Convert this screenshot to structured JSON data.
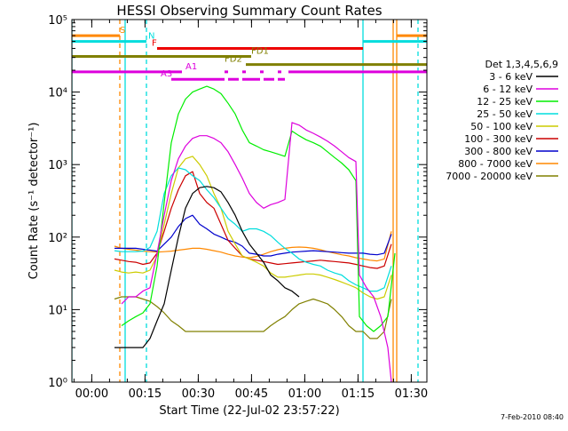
{
  "chart_data": {
    "type": "line",
    "title": "HESSI Observing Summary Count Rates",
    "xlabel": "Start Time (22-Jul-02 23:57:22)",
    "ylabel": "Count Rate (s⁻¹ detector⁻¹)",
    "footer": "7-Feb-2010 08:40",
    "x_unit": "minutes after start",
    "xlim": [
      -3,
      97
    ],
    "yscale": "log",
    "ylim": [
      1,
      100000
    ],
    "x_ticks": [
      {
        "value": 2.6,
        "label": "00:00"
      },
      {
        "value": 17.6,
        "label": "00:15"
      },
      {
        "value": 32.6,
        "label": "00:30"
      },
      {
        "value": 47.6,
        "label": "00:45"
      },
      {
        "value": 62.6,
        "label": "01:00"
      },
      {
        "value": 77.6,
        "label": "01:15"
      },
      {
        "value": 92.6,
        "label": "01:30"
      }
    ],
    "y_ticks": [
      {
        "value": 1,
        "label": "10⁰"
      },
      {
        "value": 10,
        "label": "10¹"
      },
      {
        "value": 100,
        "label": "10²"
      },
      {
        "value": 1000,
        "label": "10³"
      },
      {
        "value": 10000,
        "label": "10⁴"
      },
      {
        "value": 100000,
        "label": "10⁵"
      }
    ],
    "legend_title": "Det 1,3,4,5,6,9",
    "legend_placement": "right",
    "series": [
      {
        "name": "3 - 6 keV",
        "color": "#000000",
        "x": [
          9,
          11,
          13,
          15,
          17,
          19,
          21,
          23,
          25,
          27,
          29,
          31,
          33,
          35,
          37,
          39,
          41,
          43,
          45,
          47,
          49,
          51,
          53,
          55,
          57,
          59,
          61
        ],
        "y": [
          3,
          3,
          3,
          3,
          3,
          4,
          7,
          12,
          35,
          100,
          250,
          400,
          480,
          500,
          480,
          420,
          300,
          200,
          120,
          80,
          60,
          45,
          30,
          25,
          20,
          18,
          15
        ]
      },
      {
        "name": "6 - 12 keV",
        "color": "#dd00dd",
        "x": [
          11,
          13,
          15,
          17,
          19,
          21,
          23,
          25,
          27,
          29,
          31,
          33,
          35,
          37,
          39,
          41,
          43,
          45,
          47,
          49,
          51,
          53,
          55,
          57,
          59,
          61,
          63,
          65,
          67,
          69,
          71,
          73,
          75,
          77,
          78,
          80,
          82,
          84,
          86,
          87
        ],
        "y": [
          12,
          15,
          15,
          18,
          20,
          60,
          200,
          600,
          1200,
          1800,
          2300,
          2500,
          2500,
          2300,
          2000,
          1500,
          1000,
          650,
          400,
          300,
          250,
          280,
          300,
          330,
          3800,
          3500,
          3000,
          2700,
          2400,
          2100,
          1800,
          1500,
          1250,
          1100,
          30,
          20,
          15,
          8,
          3,
          1
        ]
      },
      {
        "name": "12 - 25 keV",
        "color": "#00ee00",
        "x": [
          11,
          13,
          15,
          17,
          19,
          21,
          23,
          25,
          27,
          29,
          31,
          33,
          35,
          37,
          39,
          41,
          43,
          45,
          47,
          49,
          51,
          53,
          55,
          57,
          59,
          61,
          63,
          65,
          67,
          69,
          71,
          73,
          75,
          77,
          78,
          80,
          82,
          84,
          86,
          88
        ],
        "y": [
          6,
          7,
          8,
          9,
          12,
          40,
          300,
          2000,
          5000,
          8000,
          10000,
          11000,
          12000,
          11000,
          9500,
          7000,
          5000,
          3000,
          2000,
          1800,
          1600,
          1500,
          1400,
          1300,
          2900,
          2500,
          2200,
          2000,
          1800,
          1500,
          1250,
          1050,
          850,
          600,
          8,
          6,
          5,
          6,
          8,
          60
        ]
      },
      {
        "name": "25 - 50 keV",
        "color": "#00dddd",
        "x": [
          9,
          11,
          13,
          15,
          17,
          19,
          21,
          23,
          25,
          27,
          29,
          31,
          33,
          35,
          37,
          39,
          41,
          43,
          45,
          47,
          49,
          51,
          53,
          55,
          57,
          59,
          61,
          63,
          65,
          67,
          69,
          71,
          73,
          75,
          77,
          79,
          81,
          83,
          85,
          87
        ],
        "y": [
          65,
          63,
          63,
          63,
          64,
          72,
          120,
          400,
          700,
          900,
          850,
          700,
          600,
          450,
          350,
          250,
          180,
          150,
          120,
          130,
          130,
          120,
          105,
          85,
          70,
          60,
          50,
          45,
          42,
          40,
          35,
          32,
          30,
          25,
          22,
          20,
          18,
          18,
          20,
          40
        ]
      },
      {
        "name": "50 - 100 keV",
        "color": "#cccc00",
        "x": [
          9,
          11,
          13,
          15,
          17,
          19,
          21,
          23,
          25,
          27,
          29,
          31,
          33,
          35,
          37,
          39,
          41,
          43,
          45,
          47,
          49,
          51,
          53,
          55,
          57,
          59,
          61,
          63,
          65,
          67,
          69,
          71,
          73,
          75,
          77,
          79,
          81,
          83,
          85,
          87
        ],
        "y": [
          35,
          33,
          32,
          33,
          32,
          35,
          55,
          150,
          400,
          900,
          1200,
          1300,
          1000,
          700,
          400,
          250,
          120,
          80,
          55,
          50,
          45,
          40,
          32,
          28,
          28,
          29,
          30,
          31,
          31,
          30,
          28,
          26,
          24,
          22,
          20,
          17,
          15,
          14,
          15,
          30
        ]
      },
      {
        "name": "100 - 300 keV",
        "color": "#cc0000",
        "x": [
          9,
          11,
          13,
          15,
          17,
          19,
          21,
          23,
          25,
          27,
          29,
          31,
          33,
          35,
          37,
          39,
          41,
          43,
          45,
          47,
          49,
          51,
          53,
          55,
          57,
          59,
          61,
          63,
          65,
          67,
          69,
          71,
          73,
          75,
          77,
          79,
          81,
          83,
          85,
          87
        ],
        "y": [
          50,
          48,
          46,
          45,
          42,
          44,
          60,
          120,
          250,
          450,
          700,
          800,
          400,
          300,
          250,
          150,
          90,
          70,
          55,
          50,
          48,
          46,
          44,
          42,
          43,
          44,
          45,
          46,
          47,
          48,
          47,
          46,
          45,
          44,
          42,
          40,
          38,
          37,
          40,
          80
        ]
      },
      {
        "name": "300 - 800 keV",
        "color": "#0000cc",
        "x": [
          9,
          11,
          13,
          15,
          17,
          19,
          21,
          23,
          25,
          27,
          29,
          31,
          33,
          35,
          37,
          39,
          41,
          43,
          45,
          47,
          49,
          51,
          53,
          55,
          57,
          59,
          61,
          63,
          65,
          67,
          69,
          71,
          73,
          75,
          77,
          79,
          81,
          83,
          85,
          87
        ],
        "y": [
          70,
          70,
          70,
          70,
          68,
          66,
          64,
          80,
          100,
          140,
          180,
          200,
          150,
          130,
          110,
          100,
          90,
          85,
          75,
          60,
          58,
          55,
          55,
          58,
          60,
          62,
          63,
          64,
          65,
          64,
          63,
          62,
          61,
          60,
          60,
          60,
          58,
          57,
          60,
          110
        ]
      },
      {
        "name": "800 - 7000 keV",
        "color": "#ff8800",
        "x": [
          9,
          11,
          13,
          15,
          17,
          19,
          21,
          23,
          25,
          27,
          29,
          31,
          33,
          35,
          37,
          39,
          41,
          43,
          45,
          47,
          49,
          51,
          53,
          55,
          57,
          59,
          61,
          63,
          65,
          67,
          69,
          71,
          73,
          75,
          77,
          79,
          81,
          83,
          85,
          87
        ],
        "y": [
          75,
          70,
          68,
          66,
          64,
          63,
          62,
          63,
          64,
          66,
          68,
          70,
          70,
          68,
          65,
          62,
          58,
          55,
          53,
          52,
          54,
          58,
          63,
          67,
          70,
          72,
          73,
          72,
          70,
          67,
          63,
          60,
          57,
          55,
          52,
          50,
          48,
          47,
          50,
          120
        ]
      },
      {
        "name": "7000 - 20000 keV",
        "color": "#808000",
        "x": [
          9,
          11,
          13,
          15,
          17,
          19,
          21,
          23,
          25,
          27,
          29,
          31,
          33,
          35,
          37,
          39,
          41,
          43,
          45,
          47,
          49,
          51,
          53,
          55,
          57,
          59,
          61,
          63,
          65,
          67,
          69,
          71,
          73,
          75,
          77,
          79,
          81,
          83,
          85,
          87
        ],
        "y": [
          14,
          15,
          15,
          15,
          14,
          13,
          11,
          9,
          7,
          6,
          5,
          5,
          5,
          5,
          5,
          5,
          5,
          5,
          5,
          5,
          5,
          5,
          6,
          7,
          8,
          10,
          12,
          13,
          14,
          13,
          12,
          10,
          8,
          6,
          5,
          5,
          4,
          4,
          5,
          14
        ]
      }
    ],
    "vertical_lines": [
      {
        "x": -3,
        "color": "#00dddd",
        "style": "solid"
      },
      {
        "x": 12,
        "color": "#00dddd",
        "style": "solid"
      },
      {
        "x": 18,
        "color": "#00dddd",
        "style": "dashed"
      },
      {
        "x": 10.5,
        "color": "#ff8800",
        "style": "dashed"
      },
      {
        "x": 79,
        "color": "#00dddd",
        "style": "solid"
      },
      {
        "x": 87.5,
        "color": "#ff8800",
        "style": "solid"
      },
      {
        "x": 88.5,
        "color": "#ff8800",
        "style": "solid"
      },
      {
        "x": 94.5,
        "color": "#00dddd",
        "style": "dashed"
      }
    ],
    "flag_bars": [
      {
        "label": "S",
        "color": "#ff8800",
        "y": 60000,
        "segments": [
          [
            -3,
            10.5
          ],
          [
            88.5,
            97
          ]
        ],
        "label_x": 10.5
      },
      {
        "label": "N",
        "color": "#00dddd",
        "y": 50000,
        "segments": [
          [
            -3,
            18
          ],
          [
            79,
            97
          ]
        ],
        "label_x": 18.5
      },
      {
        "label": "F",
        "color": "#ee0000",
        "y": 40000,
        "segments": [
          [
            21,
            79
          ]
        ],
        "label_x": 19.5
      },
      {
        "label": "FD1",
        "color": "#808000",
        "y": 31000,
        "segments": [
          [
            -3,
            47.5
          ]
        ],
        "label_x": 47.5
      },
      {
        "label": "FD2",
        "color": "#808000",
        "y": 24000,
        "segments": [
          [
            46,
            97
          ]
        ],
        "label_x": 40
      },
      {
        "label": "A1",
        "color": "#dd00dd",
        "y": 19000,
        "segments": [
          [
            -3,
            28
          ],
          [
            58,
            97
          ]
        ],
        "label_x": 29
      },
      {
        "label": "A3",
        "color": "#dd00dd",
        "y": 15000,
        "segments": [
          [
            25,
            40
          ],
          [
            41,
            44
          ],
          [
            45,
            50
          ],
          [
            51,
            54
          ],
          [
            55,
            57
          ]
        ],
        "label_x": 22
      },
      {
        "label": "",
        "color": "#dd00dd",
        "y": 19000,
        "segments": [
          [
            40,
            41
          ],
          [
            45,
            46
          ],
          [
            50,
            51
          ],
          [
            55,
            56
          ]
        ],
        "label_x": 0
      }
    ]
  }
}
